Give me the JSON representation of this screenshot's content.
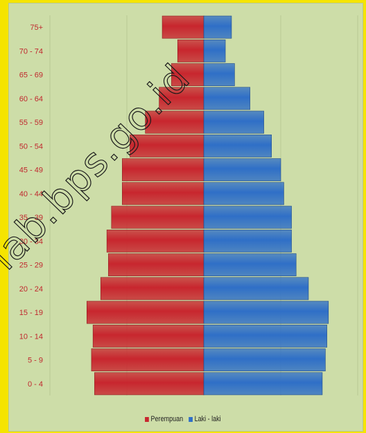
{
  "colors": {
    "perempuan": "#c8262e",
    "laki": "#2f6fc7",
    "background": "#cddda8",
    "frame": "#f5e400",
    "grid": "#b9c994"
  },
  "watermark": "lab.bps.go.id",
  "legend": {
    "perempuan": "Perempuan",
    "laki": "Laki - laki"
  },
  "chart_data": {
    "type": "bar",
    "orientation": "horizontal",
    "categories": [
      "0 - 4",
      "5 - 9",
      "10 - 14",
      "15 - 19",
      "20 - 24",
      "25 - 29",
      "30 - 34",
      "35 - 39",
      "40 - 44",
      "45 - 49",
      "50 - 54",
      "55 - 59",
      "60 - 64",
      "65 - 69",
      "70 - 74",
      "75+"
    ],
    "series": [
      {
        "name": "Perempuan",
        "values": [
          7.1,
          7.3,
          7.2,
          7.6,
          6.7,
          6.2,
          6.3,
          6.0,
          5.3,
          5.3,
          4.8,
          3.8,
          2.9,
          2.1,
          1.7,
          2.7
        ]
      },
      {
        "name": "Laki - laki",
        "values": [
          7.7,
          7.9,
          8.0,
          8.1,
          6.8,
          6.0,
          5.7,
          5.7,
          5.2,
          5.0,
          4.4,
          3.9,
          3.0,
          2.0,
          1.4,
          1.8
        ]
      }
    ],
    "xlim": [
      -10,
      10
    ],
    "grid": true,
    "legend_position": "bottom"
  }
}
